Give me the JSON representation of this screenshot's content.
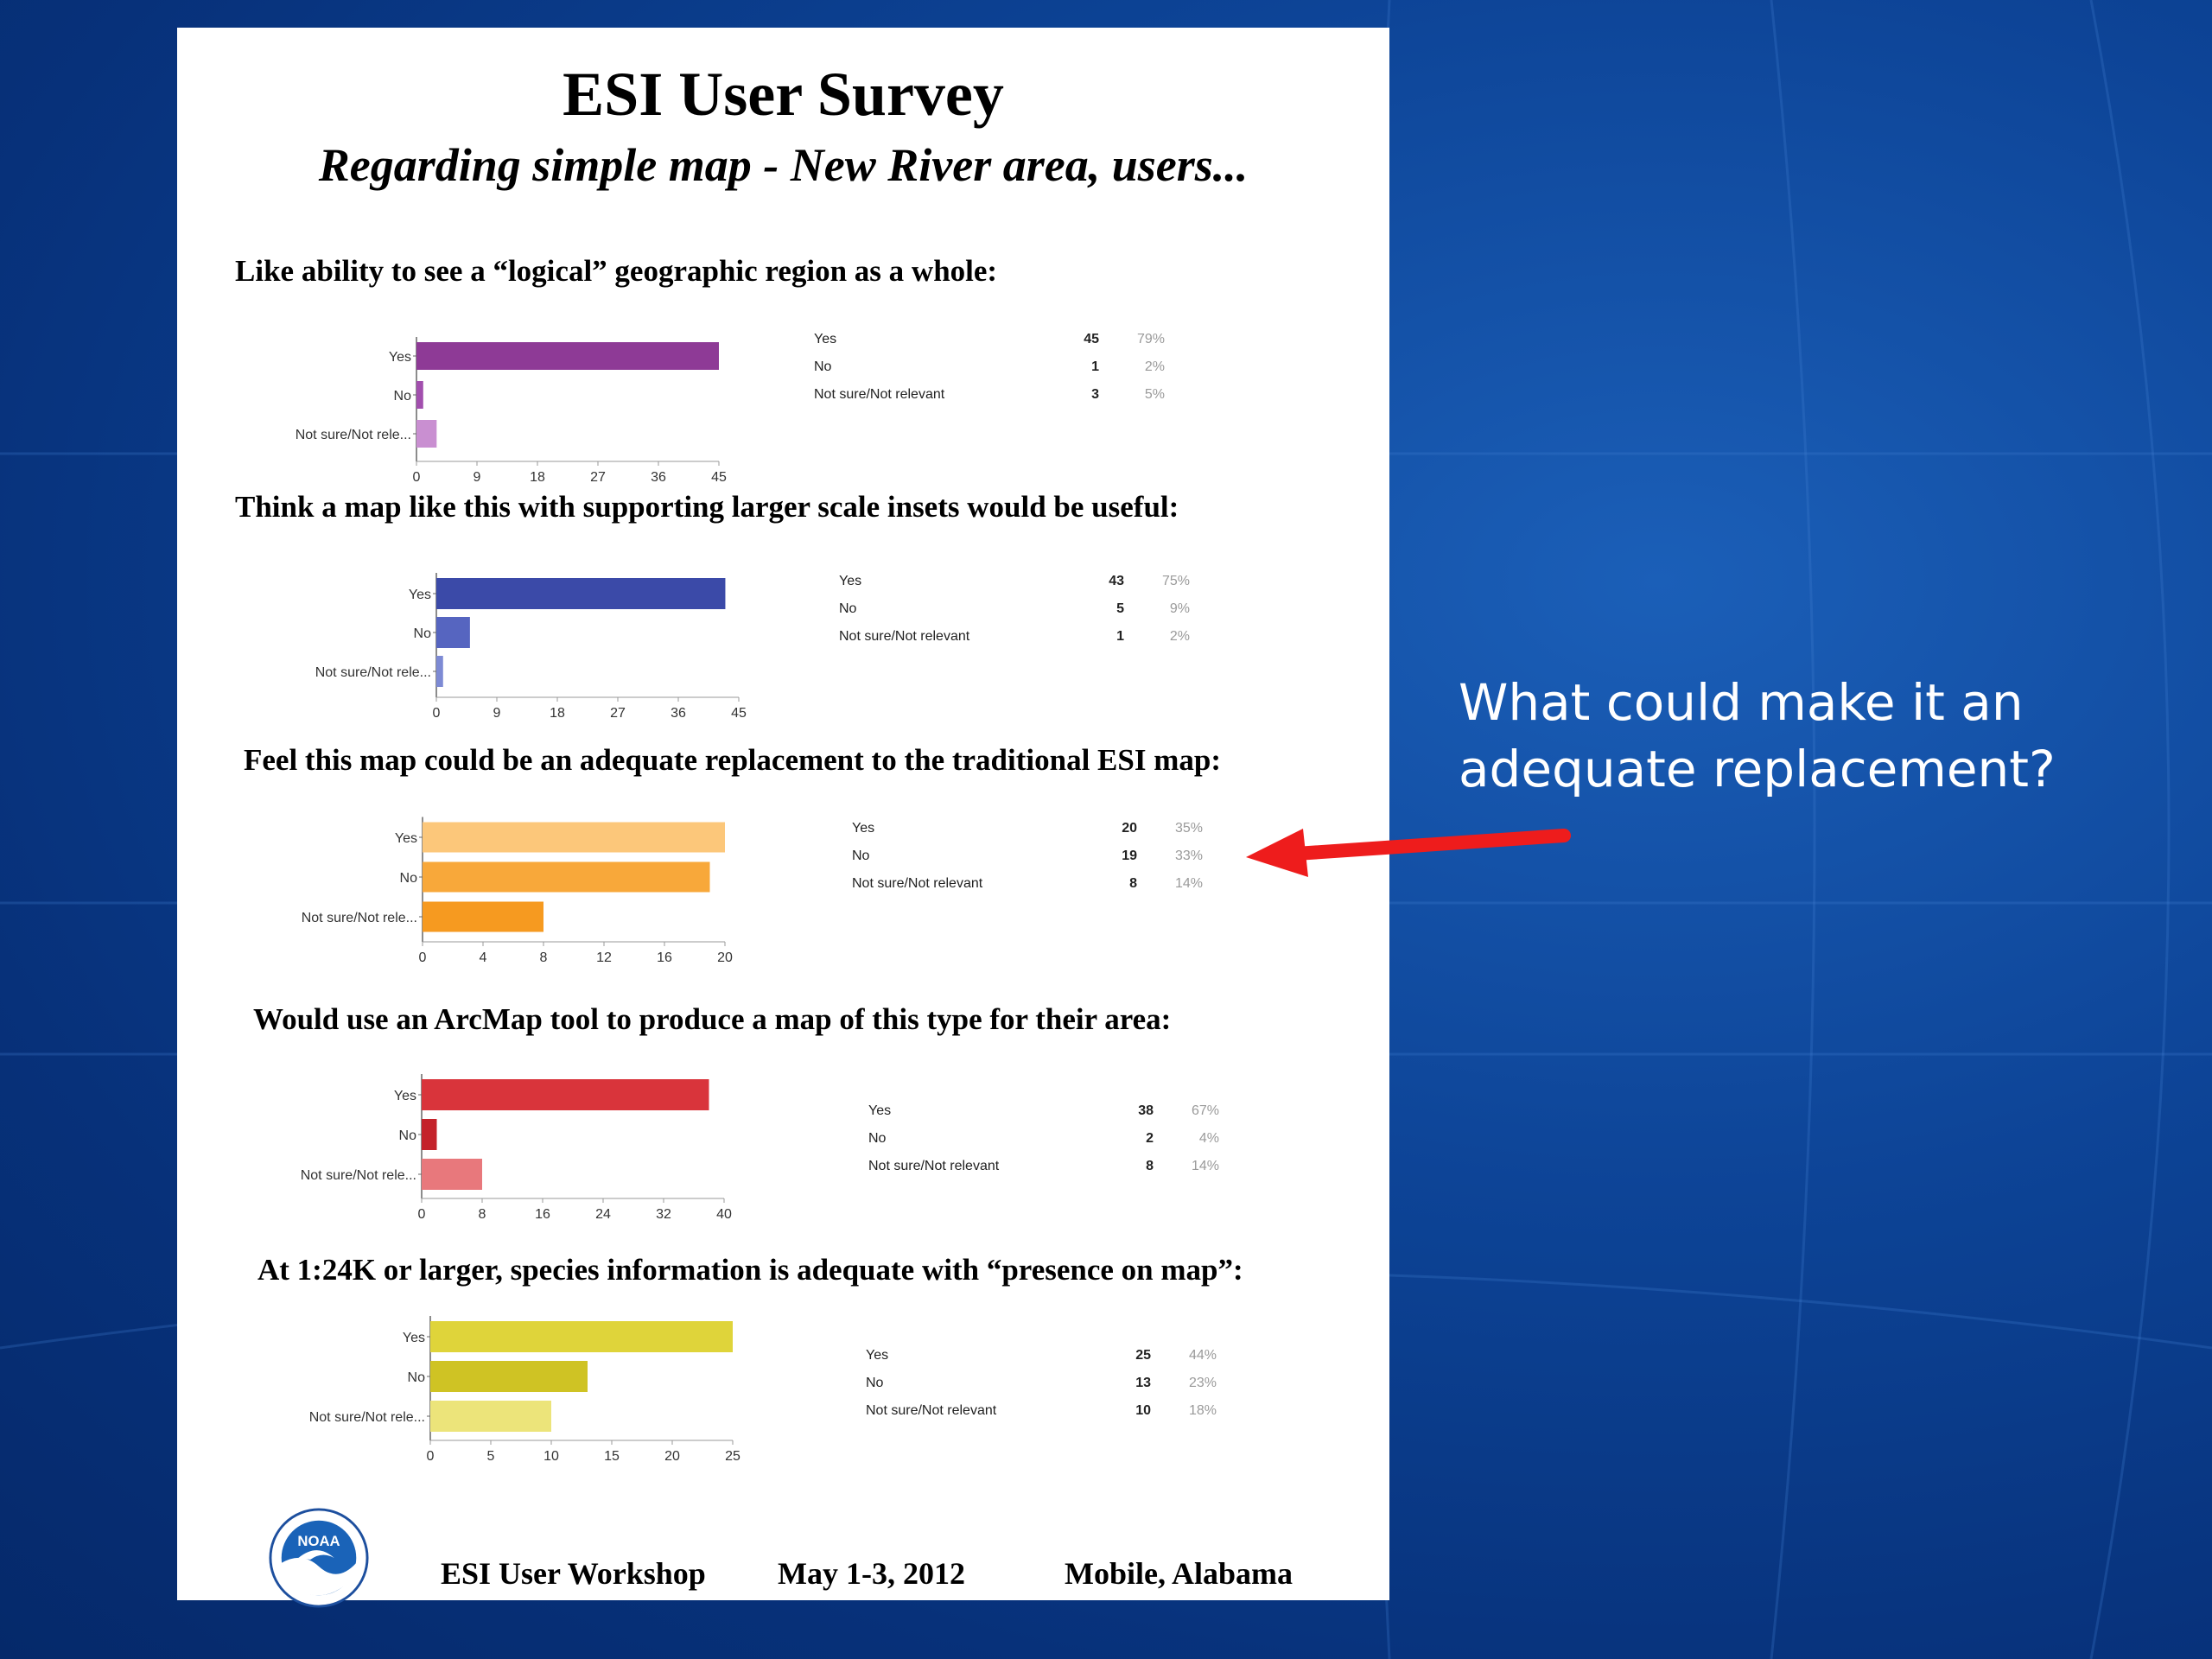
{
  "slide": {
    "title": "ESI User Survey",
    "subtitle": "Regarding simple map - New River area, users...",
    "callout_line1": "What could make it an",
    "callout_line2": "adequate replacement?",
    "footer": {
      "event": "ESI User Workshop",
      "dates": "May 1-3, 2012",
      "location": "Mobile, Alabama",
      "logo_text": "NOAA"
    }
  },
  "chart_data": [
    {
      "type": "bar",
      "title": "Like ability to see a “logical” geographic region as a whole:",
      "categories": [
        "Yes",
        "No",
        "Not sure/Not rele..."
      ],
      "values": [
        45,
        1,
        3
      ],
      "ticks": [
        0,
        9,
        18,
        27,
        36,
        45
      ],
      "xlim": [
        0,
        45
      ],
      "colors": [
        "#8e3a96",
        "#a24fae",
        "#c98fd1"
      ],
      "table": [
        {
          "label": "Yes",
          "count": "45",
          "percent": "79%"
        },
        {
          "label": "No",
          "count": "1",
          "percent": "2%"
        },
        {
          "label": "Not sure/Not relevant",
          "count": "3",
          "percent": "5%"
        }
      ]
    },
    {
      "type": "bar",
      "title": "Think a map like this with supporting larger scale insets would be useful:",
      "categories": [
        "Yes",
        "No",
        "Not sure/Not rele..."
      ],
      "values": [
        43,
        5,
        1
      ],
      "ticks": [
        0,
        9,
        18,
        27,
        36,
        45
      ],
      "xlim": [
        0,
        45
      ],
      "colors": [
        "#3b4aa8",
        "#5665c0",
        "#7d8ad4"
      ],
      "table": [
        {
          "label": "Yes",
          "count": "43",
          "percent": "75%"
        },
        {
          "label": "No",
          "count": "5",
          "percent": "9%"
        },
        {
          "label": "Not sure/Not relevant",
          "count": "1",
          "percent": "2%"
        }
      ]
    },
    {
      "type": "bar",
      "title": "Feel this map could be an adequate replacement to the traditional ESI map:",
      "categories": [
        "Yes",
        "No",
        "Not sure/Not rele..."
      ],
      "values": [
        20,
        19,
        8
      ],
      "ticks": [
        0,
        4,
        8,
        12,
        16,
        20
      ],
      "xlim": [
        0,
        20
      ],
      "colors": [
        "#fcc77a",
        "#f8a83a",
        "#f69a20"
      ],
      "table": [
        {
          "label": "Yes",
          "count": "20",
          "percent": "35%"
        },
        {
          "label": "No",
          "count": "19",
          "percent": "33%"
        },
        {
          "label": "Not sure/Not relevant",
          "count": "8",
          "percent": "14%"
        }
      ]
    },
    {
      "type": "bar",
      "title": "Would use an ArcMap tool  to produce a map of this type for their area:",
      "categories": [
        "Yes",
        "No",
        "Not sure/Not rele..."
      ],
      "values": [
        38,
        2,
        8
      ],
      "ticks": [
        0,
        8,
        16,
        24,
        32,
        40
      ],
      "xlim": [
        0,
        40
      ],
      "colors": [
        "#d9343b",
        "#c4222a",
        "#e8787c"
      ],
      "table": [
        {
          "label": "Yes",
          "count": "38",
          "percent": "67%"
        },
        {
          "label": "No",
          "count": "2",
          "percent": "4%"
        },
        {
          "label": "Not sure/Not relevant",
          "count": "8",
          "percent": "14%"
        }
      ]
    },
    {
      "type": "bar",
      "title": "At 1:24K or larger,  species information is adequate with “presence on map”:",
      "categories": [
        "Yes",
        "No",
        "Not sure/Not rele..."
      ],
      "values": [
        25,
        13,
        10
      ],
      "ticks": [
        0,
        5,
        10,
        15,
        20,
        25
      ],
      "xlim": [
        0,
        25
      ],
      "colors": [
        "#dfd43a",
        "#cfc324",
        "#ece47a"
      ],
      "table": [
        {
          "label": "Yes",
          "count": "25",
          "percent": "44%"
        },
        {
          "label": "No",
          "count": "13",
          "percent": "23%"
        },
        {
          "label": "Not sure/Not relevant",
          "count": "10",
          "percent": "18%"
        }
      ]
    }
  ]
}
